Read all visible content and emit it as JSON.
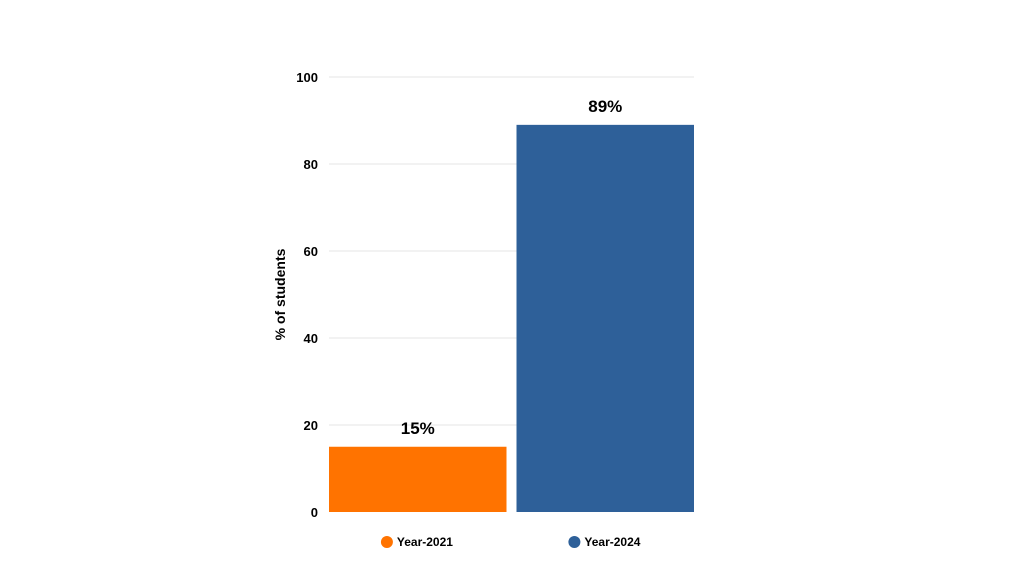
{
  "chart_data": {
    "type": "bar",
    "categories": [
      "Year-2021",
      "Year-2024"
    ],
    "values": [
      15,
      89
    ],
    "data_labels": [
      "15%",
      "89%"
    ],
    "colors": [
      "#ff7300",
      "#2e6099"
    ],
    "title": "",
    "xlabel": "",
    "ylabel": "% of students",
    "ylim": [
      0,
      100
    ],
    "yticks": [
      0,
      20,
      40,
      60,
      80,
      100
    ],
    "ytick_labels": [
      "0",
      "20",
      "40",
      "60",
      "80",
      "100"
    ],
    "grid": true,
    "legend": {
      "position": "bottom",
      "entries": [
        {
          "label": "Year-2021",
          "color": "#ff7300"
        },
        {
          "label": "Year-2024",
          "color": "#2e6099"
        }
      ]
    }
  }
}
